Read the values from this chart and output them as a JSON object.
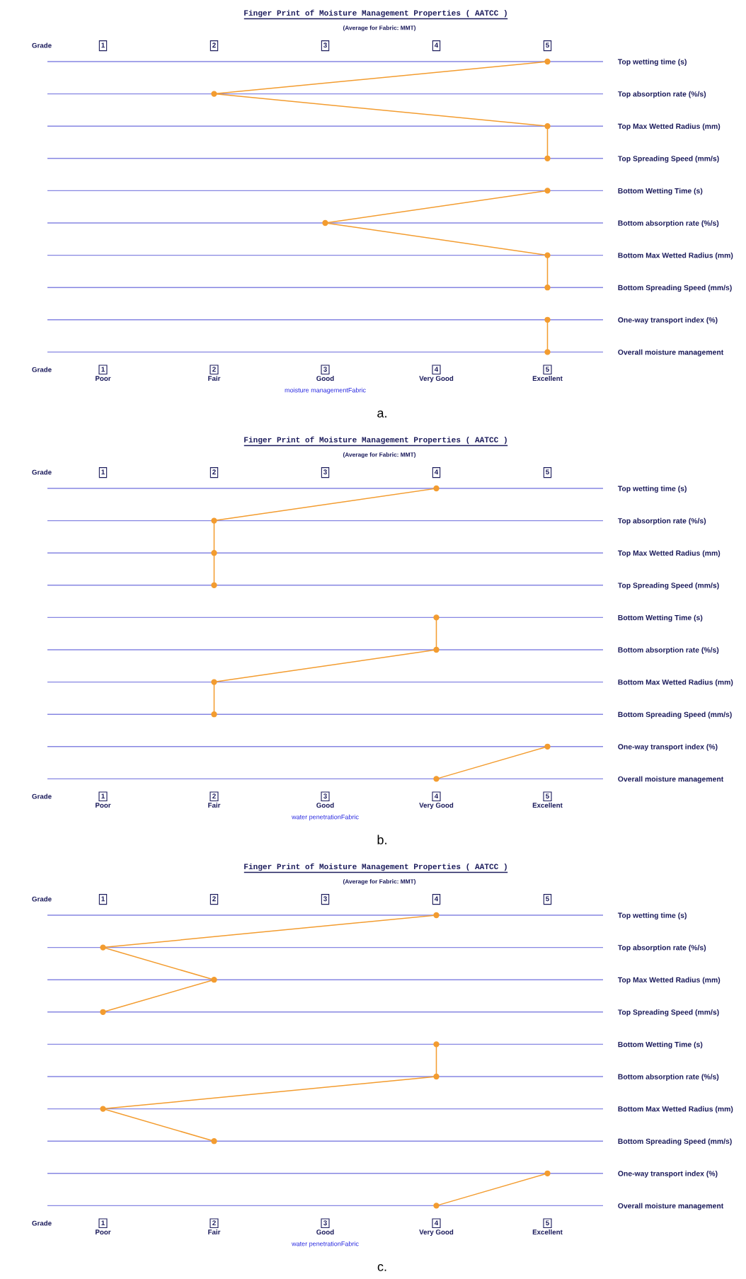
{
  "chart_data": [
    {
      "type": "line",
      "orientation": "horizontal",
      "title": "Finger Print of Moisture Management Properties ( AATCC )",
      "subtitle": "(Average for Fabric: MMT)",
      "xlabel": "Grade",
      "x2label": "Grade",
      "categories": [
        "Top wetting time (s)",
        "Top absorption rate (%/s)",
        "Top Max Wetted Radius (mm)",
        "Top Spreading Speed (mm/s)",
        "Bottom Wetting Time (s)",
        "Bottom absorption rate (%/s)",
        "Bottom Max Wetted Radius (mm)",
        "Bottom Spreading Speed (mm/s)",
        "One-way transport index (%)",
        "Overall moisture management"
      ],
      "series": [
        {
          "color": "#f39c2f",
          "values": [
            5,
            2,
            5,
            5,
            null,
            null,
            null,
            null,
            null,
            null
          ]
        },
        {
          "color": "#f39c2f",
          "values": [
            null,
            null,
            null,
            null,
            5,
            3,
            5,
            5,
            null,
            null
          ]
        },
        {
          "color": "#f39c2f",
          "values": [
            null,
            null,
            null,
            null,
            null,
            null,
            null,
            null,
            5,
            5
          ]
        }
      ],
      "xlim": [
        0.5,
        5.5
      ],
      "xticks": [
        {
          "value": 1,
          "label": "1\nPoor"
        },
        {
          "value": 2,
          "label": "2\nFair"
        },
        {
          "value": 3,
          "label": "3\nGood"
        },
        {
          "value": 4,
          "label": "4\nVery Good"
        },
        {
          "value": 5,
          "label": "5\nExcellent"
        }
      ],
      "x2lim": [
        0.5,
        5.5
      ],
      "x2ticks": [
        1,
        2,
        3,
        4,
        5
      ],
      "grid": "y",
      "marker": "circle",
      "line_style": "solid",
      "annotations": [
        "moisture managementFabric",
        "a."
      ]
    },
    {
      "type": "line",
      "orientation": "horizontal",
      "title": "Finger Print of Moisture Management Properties ( AATCC )",
      "subtitle": "(Average for Fabric: MMT)",
      "xlabel": "Grade",
      "x2label": "Grade",
      "categories": [
        "Top wetting time (s)",
        "Top absorption rate (%/s)",
        "Top Max Wetted Radius (mm)",
        "Top Spreading Speed (mm/s)",
        "Bottom Wetting Time (s)",
        "Bottom absorption rate (%/s)",
        "Bottom Max Wetted Radius (mm)",
        "Bottom Spreading Speed (mm/s)",
        "One-way transport index (%)",
        "Overall moisture management"
      ],
      "series": [
        {
          "color": "#f39c2f",
          "values": [
            4,
            2,
            2,
            2,
            null,
            null,
            null,
            null,
            null,
            null
          ]
        },
        {
          "color": "#f39c2f",
          "values": [
            null,
            null,
            null,
            null,
            4,
            4,
            2,
            2,
            null,
            null
          ]
        },
        {
          "color": "#f39c2f",
          "values": [
            null,
            null,
            null,
            null,
            null,
            null,
            null,
            null,
            5,
            4
          ]
        }
      ],
      "xlim": [
        0.5,
        5.5
      ],
      "xticks": [
        {
          "value": 1,
          "label": "1\nPoor"
        },
        {
          "value": 2,
          "label": "2\nFair"
        },
        {
          "value": 3,
          "label": "3\nGood"
        },
        {
          "value": 4,
          "label": "4\nVery Good"
        },
        {
          "value": 5,
          "label": "5\nExcellent"
        }
      ],
      "x2lim": [
        0.5,
        5.5
      ],
      "x2ticks": [
        1,
        2,
        3,
        4,
        5
      ],
      "grid": "y",
      "marker": "circle",
      "line_style": "solid",
      "annotations": [
        "water penetrationFabric",
        "b."
      ]
    },
    {
      "type": "line",
      "orientation": "horizontal",
      "title": "Finger Print of Moisture Management Properties ( AATCC )",
      "subtitle": "(Average for Fabric: MMT)",
      "xlabel": "Grade",
      "x2label": "Grade",
      "categories": [
        "Top wetting time (s)",
        "Top absorption rate (%/s)",
        "Top Max Wetted Radius (mm)",
        "Top Spreading Speed (mm/s)",
        "Bottom Wetting Time (s)",
        "Bottom absorption rate (%/s)",
        "Bottom Max Wetted Radius (mm)",
        "Bottom Spreading Speed (mm/s)",
        "One-way transport index (%)",
        "Overall moisture management"
      ],
      "series": [
        {
          "color": "#f39c2f",
          "values": [
            4,
            1,
            2,
            1,
            null,
            null,
            null,
            null,
            null,
            null
          ]
        },
        {
          "color": "#f39c2f",
          "values": [
            null,
            null,
            null,
            null,
            4,
            4,
            1,
            2,
            null,
            null
          ]
        },
        {
          "color": "#f39c2f",
          "values": [
            null,
            null,
            null,
            null,
            null,
            null,
            null,
            null,
            5,
            4
          ]
        }
      ],
      "xlim": [
        0.5,
        5.5
      ],
      "xticks": [
        {
          "value": 1,
          "label": "1\nPoor"
        },
        {
          "value": 2,
          "label": "2\nFair"
        },
        {
          "value": 3,
          "label": "3\nGood"
        },
        {
          "value": 4,
          "label": "4\nVery Good"
        },
        {
          "value": 5,
          "label": "5\nExcellent"
        }
      ],
      "x2lim": [
        0.5,
        5.5
      ],
      "x2ticks": [
        1,
        2,
        3,
        4,
        5
      ],
      "grid": "y",
      "marker": "circle",
      "line_style": "solid",
      "annotations": [
        "water penetrationFabric",
        "c."
      ]
    }
  ]
}
